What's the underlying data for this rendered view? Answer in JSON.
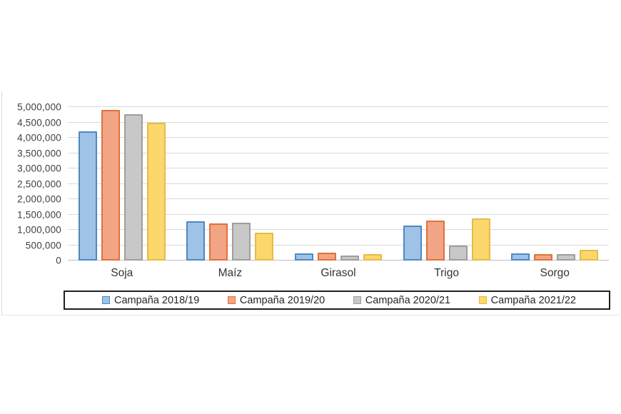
{
  "chart_data": {
    "type": "bar",
    "categories": [
      "Soja",
      "Maíz",
      "Girasol",
      "Trigo",
      "Sorgo"
    ],
    "series": [
      {
        "name": "Campaña 2018/19",
        "fill": "#9FC3E6",
        "border": "#4E87C3",
        "values": [
          4200000,
          1270000,
          240000,
          1130000,
          230000
        ]
      },
      {
        "name": "Campaña 2019/20",
        "fill": "#F2A584",
        "border": "#E0713A",
        "values": [
          4900000,
          1220000,
          260000,
          1300000,
          200000
        ]
      },
      {
        "name": "Campaña 2020/21",
        "fill": "#C8C8C8",
        "border": "#9E9E9E",
        "values": [
          4760000,
          1240000,
          170000,
          480000,
          220000
        ]
      },
      {
        "name": "Campaña 2021/22",
        "fill": "#FBD76C",
        "border": "#E4BC47",
        "values": [
          4480000,
          910000,
          210000,
          1380000,
          350000
        ]
      }
    ],
    "title": "",
    "xlabel": "",
    "ylabel": "",
    "ylim": [
      0,
      5000000
    ],
    "ytick_step": 500000,
    "ytick_labels": [
      "0",
      "500,000",
      "1,000,000",
      "1,500,000",
      "2,000,000",
      "2,500,000",
      "3,000,000",
      "3,500,000",
      "4,000,000",
      "4,500,000",
      "5,000,000"
    ],
    "grid": true,
    "legend_position": "bottom"
  },
  "colors": {
    "gridline": "#D9D9D9",
    "axis_line": "#BFBFBF",
    "legend_border": "#1F1F1F",
    "tick_text": "#3F3F3F",
    "background": "#FFFFFF"
  }
}
